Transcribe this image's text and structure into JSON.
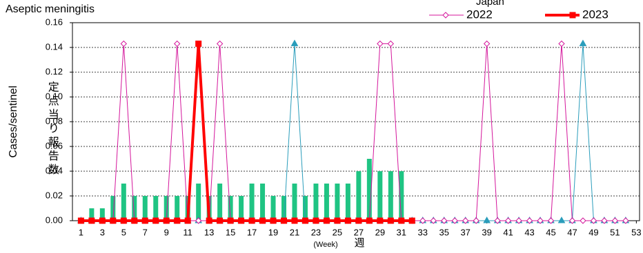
{
  "chart_data": {
    "type": "line",
    "title": "Aseptic meningitis",
    "y_label": "Cases/sentinel",
    "y_label_local": "定点当り報告数",
    "x_label": "(Week)",
    "x_label_local": "週",
    "x": [
      1,
      2,
      3,
      4,
      5,
      6,
      7,
      8,
      9,
      10,
      11,
      12,
      13,
      14,
      15,
      16,
      17,
      18,
      19,
      20,
      21,
      22,
      23,
      24,
      25,
      26,
      27,
      28,
      29,
      30,
      31,
      32,
      33,
      34,
      35,
      36,
      37,
      38,
      39,
      40,
      41,
      42,
      43,
      44,
      45,
      46,
      47,
      48,
      49,
      50,
      51,
      52,
      53
    ],
    "xlim": [
      0.2,
      53.3
    ],
    "xticks": [
      1,
      3,
      5,
      7,
      9,
      11,
      13,
      15,
      17,
      19,
      21,
      23,
      25,
      27,
      29,
      31,
      33,
      35,
      37,
      39,
      41,
      43,
      45,
      47,
      49,
      51,
      53
    ],
    "ylim": [
      0,
      0.16
    ],
    "yticks": [
      {
        "value": 0,
        "label": "0.00"
      },
      {
        "value": 0.02,
        "label": "0.02"
      },
      {
        "value": 0.04,
        "label": "0.04"
      },
      {
        "value": 0.06,
        "label": "0.06"
      },
      {
        "value": 0.08,
        "label": "0.08"
      },
      {
        "value": 0.1,
        "label": "0.10"
      },
      {
        "value": 0.12,
        "label": "0.12"
      },
      {
        "value": 0.14,
        "label": "0.14"
      },
      {
        "value": 0.16,
        "label": "0.16"
      }
    ],
    "grid": true,
    "series": [
      {
        "name": "Japan",
        "type": "bar",
        "color": "#1fc483",
        "values": [
          0,
          0.01,
          0.01,
          0.02,
          0.03,
          0.02,
          0.02,
          0.02,
          0.02,
          0.02,
          0.02,
          0.03,
          0.02,
          0.03,
          0.02,
          0.02,
          0.03,
          0.03,
          0.02,
          0.02,
          0.03,
          0.02,
          0.03,
          0.03,
          0.03,
          0.03,
          0.04,
          0.05,
          0.04,
          0.04,
          0.04,
          null,
          null,
          null,
          null,
          null,
          null,
          null,
          null,
          null,
          null,
          null,
          null,
          null,
          null,
          null,
          null,
          null,
          null,
          null,
          null,
          null,
          null
        ]
      },
      {
        "type": "line",
        "color": "#2a9dbb",
        "marker": "triangle",
        "values": [
          0,
          0,
          0,
          0,
          0,
          0,
          0,
          0,
          0,
          0,
          0,
          0,
          0,
          0,
          0,
          0,
          0,
          0,
          0,
          0,
          0.143,
          0,
          0,
          0,
          0,
          0,
          0,
          0,
          0,
          0,
          0,
          0,
          0,
          0,
          0,
          0,
          0,
          0,
          0,
          0,
          0,
          0,
          0,
          0,
          0,
          0,
          0,
          0.143,
          0,
          0,
          0,
          0,
          null
        ]
      },
      {
        "name": "2022",
        "type": "line",
        "color": "#d4159b",
        "marker": "diamond",
        "values": [
          0,
          0,
          0,
          0,
          0.143,
          0,
          0,
          0,
          0,
          0.143,
          0,
          0,
          0,
          0.143,
          0,
          0,
          0,
          0,
          0,
          0,
          0,
          0,
          0,
          0,
          0,
          0,
          0,
          0,
          0.143,
          0.143,
          0,
          0,
          0,
          0,
          0,
          0,
          0,
          0,
          0.143,
          0,
          0,
          0,
          0,
          0,
          0,
          0.143,
          0,
          0,
          0,
          0,
          0,
          0,
          null
        ]
      },
      {
        "name": "2023",
        "type": "line",
        "color": "#ff0000",
        "marker": "square",
        "width": 4,
        "values": [
          0,
          0,
          0,
          0,
          0,
          0,
          0,
          0,
          0,
          0,
          0,
          0.143,
          0,
          0,
          0,
          0,
          0,
          0,
          0,
          0,
          0,
          0,
          0,
          0,
          0,
          0,
          0,
          0,
          0,
          0,
          0,
          0,
          null,
          null,
          null,
          null,
          null,
          null,
          null,
          null,
          null,
          null,
          null,
          null,
          null,
          null,
          null,
          null,
          null,
          null,
          null,
          null,
          null
        ]
      }
    ]
  }
}
